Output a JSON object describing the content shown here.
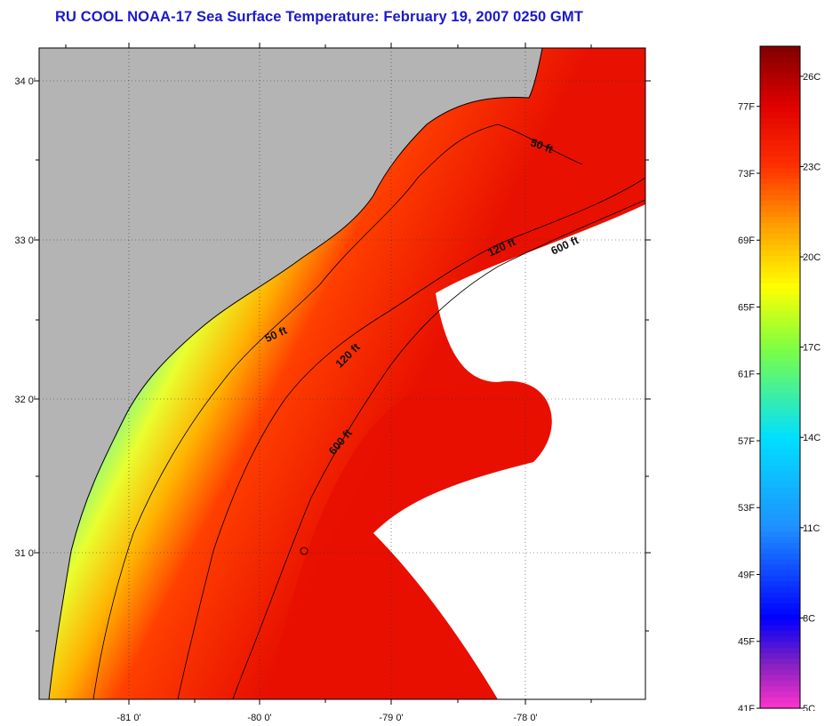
{
  "title": "RU COOL  NOAA-17  Sea Surface Temperature:  February 19, 2007 0250 GMT",
  "map": {
    "lon_ticks": [
      "-81 0'",
      "-80 0'",
      "-79 0'",
      "-78 0'"
    ],
    "lat_ticks": [
      "34 0'",
      "33 0'",
      "32 0'",
      "31 0'"
    ],
    "contours": [
      {
        "label": "50 ft",
        "depth_ft": 50
      },
      {
        "label": "50 ft",
        "depth_ft": 50
      },
      {
        "label": "120 ft",
        "depth_ft": 120
      },
      {
        "label": "120 ft",
        "depth_ft": 120
      },
      {
        "label": "600 ft",
        "depth_ft": 600
      },
      {
        "label": "600 ft",
        "depth_ft": 600
      }
    ],
    "colors": {
      "land": "#b4b4b4",
      "cloud": "#ffffff",
      "coast_line": "#000000",
      "grid_line": "#333333"
    }
  },
  "colorbar": {
    "fahrenheit_labels": [
      "77F",
      "73F",
      "69F",
      "65F",
      "61F",
      "57F",
      "53F",
      "49F",
      "45F",
      "41F"
    ],
    "celsius_labels": [
      "26C",
      "23C",
      "20C",
      "17C",
      "14C",
      "11C",
      "8C",
      "5C"
    ],
    "range_celsius": [
      5,
      27
    ],
    "stops": [
      {
        "c": 5,
        "color": "#ff33cc"
      },
      {
        "c": 6.5,
        "color": "#8020c0"
      },
      {
        "c": 8,
        "color": "#0000ff"
      },
      {
        "c": 11,
        "color": "#1e90ff"
      },
      {
        "c": 14,
        "color": "#00e0ff"
      },
      {
        "c": 17,
        "color": "#80ff40"
      },
      {
        "c": 19,
        "color": "#ffff00"
      },
      {
        "c": 21,
        "color": "#ffa000"
      },
      {
        "c": 23,
        "color": "#ff3000"
      },
      {
        "c": 25,
        "color": "#e00000"
      },
      {
        "c": 27,
        "color": "#800000"
      }
    ]
  }
}
